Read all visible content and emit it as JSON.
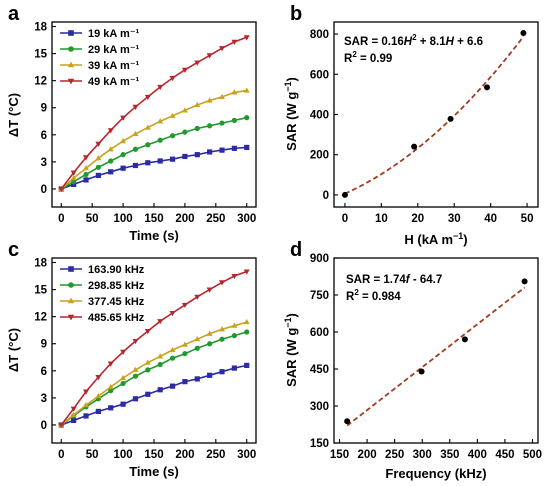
{
  "chart_data": [
    {
      "panel": "a",
      "type": "line",
      "xlabel": "Time (s)",
      "ylabel": "ΔT (°C)",
      "xlim": [
        -15,
        315
      ],
      "ylim": [
        -2,
        18.5
      ],
      "xticks": [
        0,
        50,
        100,
        150,
        200,
        250,
        300
      ],
      "yticks": [
        0,
        3,
        6,
        9,
        12,
        15,
        18
      ],
      "legend_position": "top-left",
      "x": [
        0,
        20,
        40,
        60,
        80,
        100,
        120,
        140,
        160,
        180,
        200,
        220,
        240,
        260,
        280,
        300
      ],
      "series": [
        {
          "name": "19 kA m⁻¹",
          "color": "#2b2ba6",
          "marker": "square",
          "values": [
            0,
            0.5,
            1.0,
            1.5,
            1.9,
            2.3,
            2.6,
            2.9,
            3.1,
            3.3,
            3.6,
            3.8,
            4.1,
            4.3,
            4.5,
            4.6
          ]
        },
        {
          "name": "29 kA m⁻¹",
          "color": "#1f9a2e",
          "marker": "circle",
          "values": [
            0,
            0.8,
            1.6,
            2.4,
            3.1,
            3.8,
            4.4,
            4.9,
            5.4,
            5.9,
            6.3,
            6.7,
            7.0,
            7.3,
            7.6,
            7.9
          ]
        },
        {
          "name": "39 kA m⁻¹",
          "color": "#c9a21e",
          "marker": "triangle-up",
          "values": [
            0,
            1.2,
            2.3,
            3.4,
            4.4,
            5.3,
            6.1,
            6.8,
            7.5,
            8.1,
            8.7,
            9.3,
            9.8,
            10.2,
            10.7,
            10.9
          ]
        },
        {
          "name": "49 kA m⁻¹",
          "color": "#b8262b",
          "marker": "triangle-down",
          "values": [
            0,
            1.8,
            3.5,
            5.0,
            6.5,
            7.9,
            9.1,
            10.2,
            11.3,
            12.3,
            13.2,
            14.0,
            14.8,
            15.6,
            16.3,
            16.8
          ]
        }
      ]
    },
    {
      "panel": "b",
      "type": "scatter",
      "xlabel": "H (kA m⁻¹)",
      "ylabel": "SAR (W g⁻¹)",
      "xlim": [
        -3,
        53
      ],
      "ylim": [
        -60,
        860
      ],
      "xticks": [
        0,
        10,
        20,
        30,
        40,
        50
      ],
      "yticks": [
        0,
        200,
        400,
        600,
        800
      ],
      "annotations": [
        "SAR = 0.16H² + 8.1H + 6.6",
        "R² = 0.99"
      ],
      "points": {
        "x": [
          0,
          19,
          29,
          39,
          49
        ],
        "y": [
          0,
          240,
          378,
          535,
          805
        ]
      },
      "fit": {
        "type": "quadratic",
        "coefficients": [
          0.16,
          8.1,
          6.6
        ],
        "x_range": [
          0,
          49
        ],
        "color": "#a33b22"
      }
    },
    {
      "panel": "c",
      "type": "line",
      "xlabel": "Time (s)",
      "ylabel": "ΔT (°C)",
      "xlim": [
        -15,
        315
      ],
      "ylim": [
        -2,
        18.5
      ],
      "xticks": [
        0,
        50,
        100,
        150,
        200,
        250,
        300
      ],
      "yticks": [
        0,
        3,
        6,
        9,
        12,
        15,
        18
      ],
      "legend_position": "top-left",
      "x": [
        0,
        20,
        40,
        60,
        80,
        100,
        120,
        140,
        160,
        180,
        200,
        220,
        240,
        260,
        280,
        300
      ],
      "series": [
        {
          "name": "163.90 kHz",
          "color": "#2b2ba6",
          "marker": "square",
          "values": [
            0,
            0.5,
            1.0,
            1.5,
            1.9,
            2.3,
            2.9,
            3.4,
            3.9,
            4.3,
            4.8,
            5.1,
            5.5,
            5.9,
            6.3,
            6.6
          ]
        },
        {
          "name": "298.85 kHz",
          "color": "#1f9a2e",
          "marker": "circle",
          "values": [
            0,
            1.0,
            2.0,
            2.9,
            3.8,
            4.6,
            5.4,
            6.1,
            6.7,
            7.4,
            7.9,
            8.5,
            9.0,
            9.5,
            9.9,
            10.3
          ]
        },
        {
          "name": "377.45 kHz",
          "color": "#c9a21e",
          "marker": "triangle-up",
          "values": [
            0,
            1.1,
            2.2,
            3.2,
            4.2,
            5.2,
            6.1,
            6.9,
            7.6,
            8.3,
            8.9,
            9.5,
            10.1,
            10.6,
            11.0,
            11.4
          ]
        },
        {
          "name": "485.65 kHz",
          "color": "#b8262b",
          "marker": "triangle-down",
          "values": [
            0,
            1.8,
            3.7,
            5.3,
            6.8,
            8.1,
            9.3,
            10.4,
            11.5,
            12.4,
            13.3,
            14.2,
            15.0,
            15.8,
            16.5,
            17.0
          ]
        }
      ]
    },
    {
      "panel": "d",
      "type": "scatter",
      "xlabel": "Frequency (kHz)",
      "ylabel": "SAR (W g⁻¹)",
      "xlim": [
        140,
        510
      ],
      "ylim": [
        150,
        900
      ],
      "xticks": [
        150,
        200,
        250,
        300,
        350,
        400,
        450,
        500
      ],
      "yticks": [
        150,
        300,
        450,
        600,
        750,
        900
      ],
      "annotations": [
        "SAR = 1.74f - 64.7",
        "R² = 0.984"
      ],
      "points": {
        "x": [
          163.9,
          298.85,
          377.45,
          485.65
        ],
        "y": [
          238,
          440,
          570,
          805
        ]
      },
      "fit": {
        "type": "linear",
        "coefficients": [
          1.74,
          -64.7
        ],
        "x_range": [
          163.9,
          485.65
        ],
        "color": "#a33b22"
      }
    }
  ]
}
